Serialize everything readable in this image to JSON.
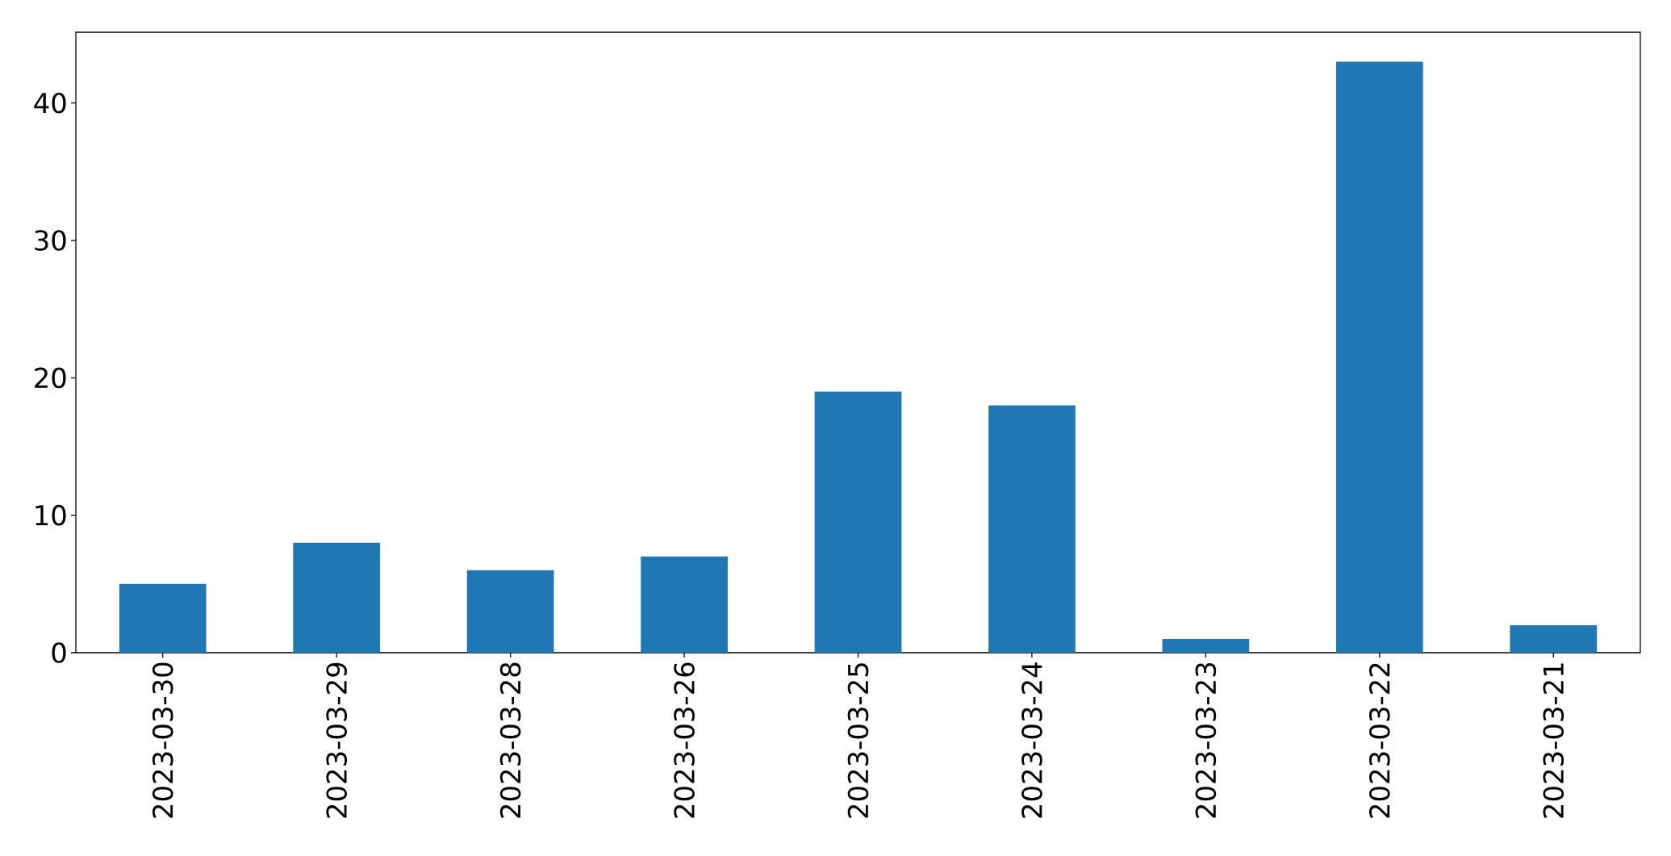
{
  "chart_data": {
    "type": "bar",
    "categories": [
      "2023-03-30",
      "2023-03-29",
      "2023-03-28",
      "2023-03-26",
      "2023-03-25",
      "2023-03-24",
      "2023-03-23",
      "2023-03-22",
      "2023-03-21"
    ],
    "values": [
      5,
      8,
      6,
      7,
      19,
      18,
      1,
      43,
      2
    ],
    "color": "#1f77b4",
    "ylim": [
      0,
      45.15
    ],
    "yticks": [
      0,
      10,
      20,
      30,
      40
    ]
  }
}
